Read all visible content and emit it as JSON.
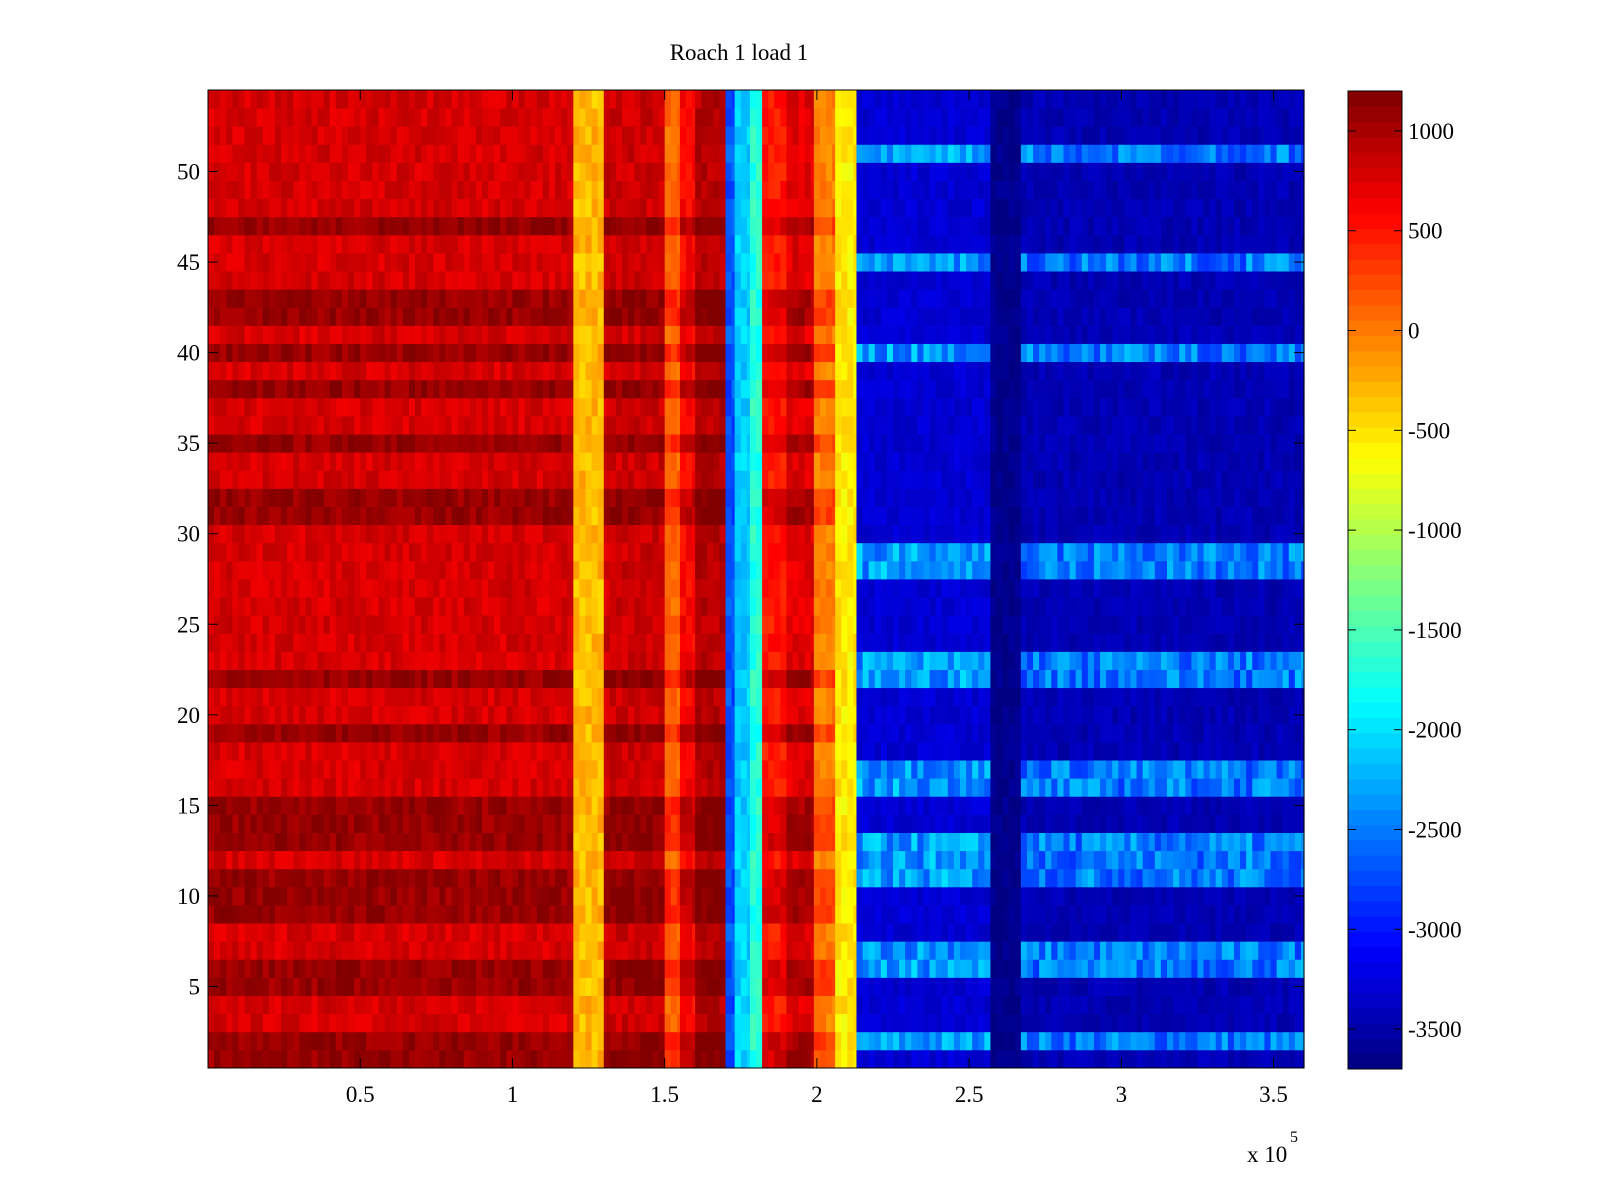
{
  "chart_data": {
    "type": "heatmap",
    "title": "Roach 1 load 1",
    "xlabel": "",
    "ylabel": "",
    "x_exponent_label": "x 10",
    "x_exponent": "5",
    "xlim": [
      0,
      3.6
    ],
    "ylim": [
      0.5,
      54.5
    ],
    "x_ticks": [
      0.5,
      1,
      1.5,
      2,
      2.5,
      3,
      3.5
    ],
    "x_tick_labels": [
      "0.5",
      "1",
      "1.5",
      "2",
      "2.5",
      "3",
      "3.5"
    ],
    "y_ticks": [
      5,
      10,
      15,
      20,
      25,
      30,
      35,
      40,
      45,
      50
    ],
    "y_tick_labels": [
      "5",
      "10",
      "15",
      "20",
      "25",
      "30",
      "35",
      "40",
      "45",
      "50"
    ],
    "rows": 54,
    "colorbar": {
      "colormap": "jet",
      "range": [
        -3700,
        1200
      ],
      "ticks": [
        1000,
        500,
        0,
        -500,
        -1000,
        -1500,
        -2000,
        -2500,
        -3000,
        -3500
      ],
      "tick_labels": [
        "1000",
        "500",
        "0",
        "-500",
        "-1000",
        "-1500",
        "-2000",
        "-2500",
        "-3000",
        "-3500"
      ]
    },
    "column_bands": [
      {
        "x": [
          0.0,
          1.2
        ],
        "value": 900
      },
      {
        "x": [
          1.2,
          1.3
        ],
        "value": -300
      },
      {
        "x": [
          1.3,
          1.5
        ],
        "value": 950
      },
      {
        "x": [
          1.5,
          1.55
        ],
        "value": 200
      },
      {
        "x": [
          1.55,
          1.6
        ],
        "value": 700
      },
      {
        "x": [
          1.6,
          1.7
        ],
        "value": 1050
      },
      {
        "x": [
          1.7,
          1.73
        ],
        "value": -2700
      },
      {
        "x": [
          1.73,
          1.78
        ],
        "value": -2100
      },
      {
        "x": [
          1.78,
          1.82
        ],
        "value": -1700
      },
      {
        "x": [
          1.82,
          1.9
        ],
        "value": 600
      },
      {
        "x": [
          1.9,
          1.99
        ],
        "value": 850
      },
      {
        "x": [
          1.99,
          2.06
        ],
        "value": 100
      },
      {
        "x": [
          2.06,
          2.13
        ],
        "value": -550
      },
      {
        "x": [
          2.13,
          2.57
        ],
        "value": -3300
      },
      {
        "x": [
          2.57,
          2.67
        ],
        "value": -3650
      },
      {
        "x": [
          2.67,
          3.6
        ],
        "value": -3450
      }
    ],
    "dark_rows": [
      1,
      2,
      5,
      6,
      9,
      10,
      11,
      13,
      14,
      15,
      19,
      22,
      31,
      32,
      35,
      38,
      40,
      42,
      43,
      47
    ],
    "bright_rows_right": [
      2,
      6,
      7,
      11,
      12,
      13,
      16,
      17,
      22,
      23,
      28,
      29,
      40,
      45,
      51
    ]
  }
}
